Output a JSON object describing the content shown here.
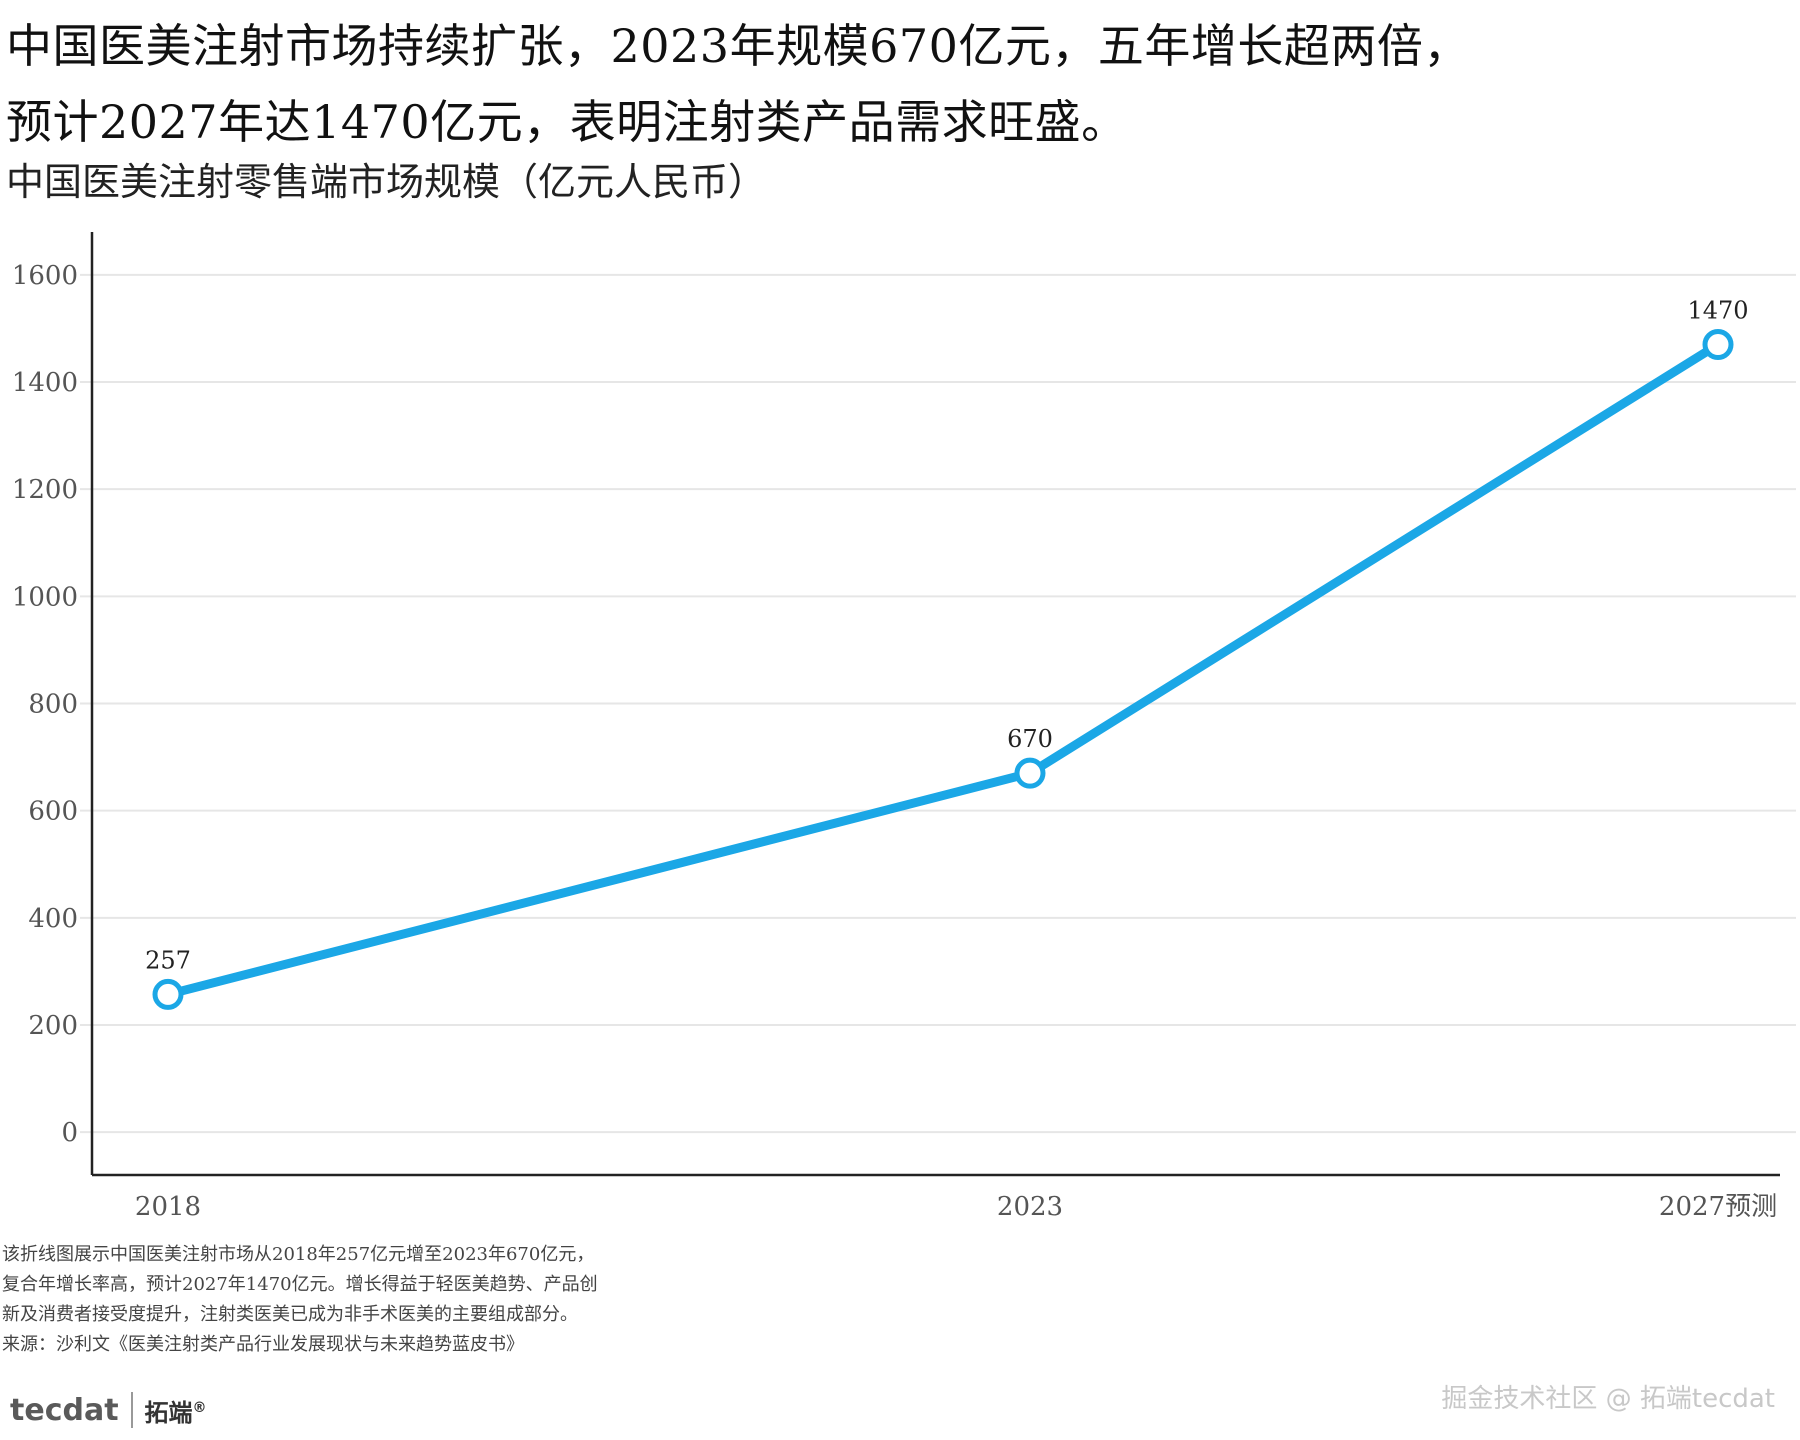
{
  "headline": {
    "line1": "中国医美注射市场持续扩张，2023年规模670亿元，五年增长超两倍，",
    "line2": "预计2027年达1470亿元，表明注射类产品需求旺盛。"
  },
  "chart_data": {
    "type": "line",
    "title": "中国医美注射零售端市场规模（亿元人民币）",
    "x": [
      "2018",
      "2023",
      "2027预测"
    ],
    "series": [
      {
        "values": [
          257,
          670,
          1470
        ]
      }
    ],
    "data_labels": [
      "257",
      "670",
      "1470"
    ],
    "y_ticks": [
      0,
      200,
      400,
      600,
      800,
      1000,
      1200,
      1400,
      1600
    ],
    "ylim": [
      -80,
      1680
    ],
    "grid": true,
    "line_color": "#1ba7e6",
    "grid_color": "#e6e6e6",
    "xlabel": "",
    "ylabel": ""
  },
  "caption": {
    "line1": "该折线图展示中国医美注射市场从2018年257亿元增至2023年670亿元，",
    "line2": "复合年增长率高，预计2027年1470亿元。增长得益于轻医美趋势、产品创",
    "line3": "新及消费者接受度提升，注射类医美已成为非手术医美的主要组成部分。",
    "source": "来源：沙利文《医美注射类产品行业发展现状与未来趋势蓝皮书》"
  },
  "logo": {
    "mark": "tecdat",
    "name_cn": "拓端",
    "registered": "®"
  },
  "watermark": "掘金技术社区 @ 拓端tecdat"
}
